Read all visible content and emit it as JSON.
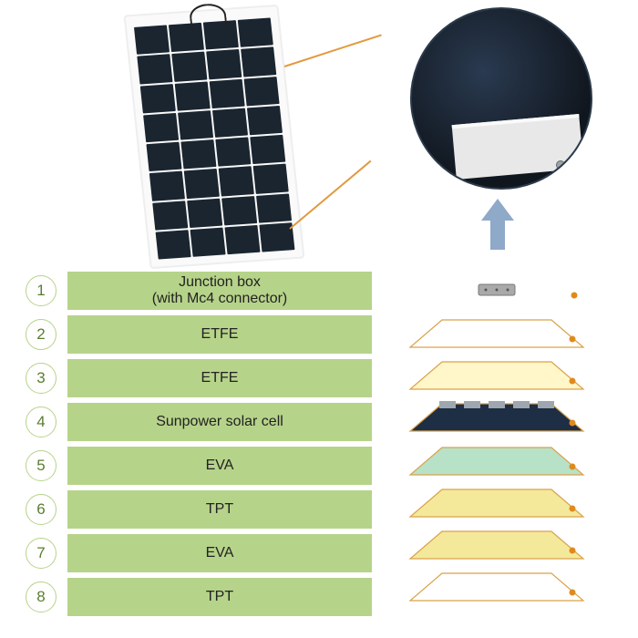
{
  "layers": [
    {
      "num": "1",
      "label": "Junction box\n(with Mc4 connector)"
    },
    {
      "num": "2",
      "label": "ETFE"
    },
    {
      "num": "3",
      "label": "ETFE"
    },
    {
      "num": "4",
      "label": "Sunpower solar cell"
    },
    {
      "num": "5",
      "label": "EVA"
    },
    {
      "num": "6",
      "label": "TPT"
    },
    {
      "num": "7",
      "label": "EVA"
    },
    {
      "num": "8",
      "label": "TPT"
    }
  ],
  "style": {
    "row_bg": "#b6d38a",
    "circle_border": "#b6d38a",
    "circle_text": "#5a7d2f",
    "label_fontsize": 16,
    "callout_color": "#e29a3e",
    "arrow_color": "#8fa9c9",
    "stack_colors": {
      "1_junction": "#a9a9a9",
      "2_etfe": "#ffffff",
      "3_etfe": "#fff6c9",
      "4_cell": "#1d2e45",
      "4_cell_tab": "#9ea7b0",
      "5_eva": "#b7e2c8",
      "6_tpt": "#f4e99a",
      "7_eva": "#f4e99a",
      "8_tpt": "#ffffff"
    },
    "stack_stroke": "#d9a24a",
    "dot_color": "#e08a1e"
  },
  "panel": {
    "cols": 4,
    "rows": 8
  }
}
